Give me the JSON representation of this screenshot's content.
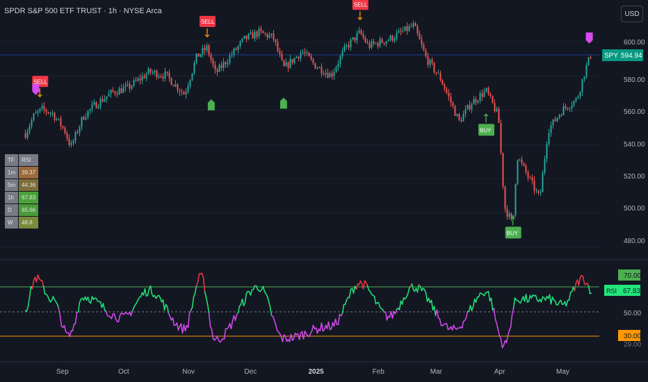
{
  "header": {
    "title": "SPDR S&P 500 ETF TRUST · 1h · NYSE Arca",
    "currency_button": "USD"
  },
  "price_axis": {
    "ticks": [
      "600.00",
      "580.00",
      "560.00",
      "540.00",
      "520.00",
      "500.00",
      "480.00"
    ]
  },
  "rsi_axis": {
    "ticks": [
      "50.00",
      "29.00"
    ],
    "overbought_label": "70.00",
    "oversold_label": "30.00",
    "rsi_tag_name": "RSI",
    "rsi_tag_value": "67.83"
  },
  "last_price": {
    "symbol": "SPY",
    "value": "594.94"
  },
  "time_axis": {
    "labels": [
      "Sep",
      "Oct",
      "Nov",
      "Dec",
      "2025",
      "Feb",
      "Mar",
      "Apr",
      "May"
    ]
  },
  "signals": {
    "sell_label": "SELL",
    "buy_label": "BUY"
  },
  "rsi_table": {
    "header": [
      "TF",
      "RSI"
    ],
    "rows": [
      {
        "tf": "1m",
        "rsi": "39.37",
        "color": "#9c6a3c"
      },
      {
        "tf": "5m",
        "rsi": "44.36",
        "color": "#7d6e3a"
      },
      {
        "tf": "1h",
        "rsi": "67.83",
        "color": "#4aa33a"
      },
      {
        "tf": "D",
        "rsi": "65.66",
        "color": "#4a9a39"
      },
      {
        "tf": "W",
        "rsi": "48.8",
        "color": "#7a8a3b"
      }
    ]
  },
  "colors": {
    "up": "#26a69a",
    "down": "#ef5350",
    "rsi_high": "#22e67a",
    "rsi_low": "#d64bf0",
    "rsi_ob": "#f23645",
    "overbought_line": "#4caf50",
    "oversold_line": "#ff9800",
    "sell": "#f23645",
    "buy": "#4caf50",
    "last_price": "#089981"
  },
  "chart_data": {
    "type": "candlestick",
    "symbol": "SPY",
    "interval": "1h",
    "y_range": [
      470,
      612
    ],
    "x_labels": [
      "Sep",
      "Oct",
      "Nov",
      "Dec",
      "2025",
      "Feb",
      "Mar",
      "Apr",
      "May"
    ],
    "close_path": [
      {
        "x": "Aug 15",
        "y": 548
      },
      {
        "x": "Aug 19",
        "y": 558
      },
      {
        "x": "Aug 23",
        "y": 562
      },
      {
        "x": "Aug 28",
        "y": 560
      },
      {
        "x": "Sep 3",
        "y": 550
      },
      {
        "x": "Sep 6",
        "y": 540
      },
      {
        "x": "Sep 12",
        "y": 558
      },
      {
        "x": "Sep 18",
        "y": 565
      },
      {
        "x": "Sep 26",
        "y": 572
      },
      {
        "x": "Oct 4",
        "y": 575
      },
      {
        "x": "Oct 14",
        "y": 584
      },
      {
        "x": "Oct 22",
        "y": 582
      },
      {
        "x": "Oct 31",
        "y": 571
      },
      {
        "x": "Nov 6",
        "y": 593
      },
      {
        "x": "Nov 11",
        "y": 598
      },
      {
        "x": "Nov 15",
        "y": 583
      },
      {
        "x": "Nov 20",
        "y": 590
      },
      {
        "x": "Nov 29",
        "y": 603
      },
      {
        "x": "Dec 6",
        "y": 607
      },
      {
        "x": "Dec 13",
        "y": 604
      },
      {
        "x": "Dec 18",
        "y": 586
      },
      {
        "x": "Dec 27",
        "y": 596
      },
      {
        "x": "Jan 2",
        "y": 588
      },
      {
        "x": "Jan 10",
        "y": 582
      },
      {
        "x": "Jan 17",
        "y": 598
      },
      {
        "x": "Jan 24",
        "y": 607
      },
      {
        "x": "Jan 28",
        "y": 599
      },
      {
        "x": "Feb 7",
        "y": 603
      },
      {
        "x": "Feb 19",
        "y": 611
      },
      {
        "x": "Feb 25",
        "y": 592
      },
      {
        "x": "Mar 4",
        "y": 580
      },
      {
        "x": "Mar 13",
        "y": 555
      },
      {
        "x": "Mar 19",
        "y": 566
      },
      {
        "x": "Mar 26",
        "y": 573
      },
      {
        "x": "Apr 1",
        "y": 558
      },
      {
        "x": "Apr 4",
        "y": 505
      },
      {
        "x": "Apr 8",
        "y": 495
      },
      {
        "x": "Apr 10",
        "y": 535
      },
      {
        "x": "Apr 21",
        "y": 510
      },
      {
        "x": "Apr 25",
        "y": 550
      },
      {
        "x": "May 2",
        "y": 562
      },
      {
        "x": "May 9",
        "y": 568
      },
      {
        "x": "May 13",
        "y": 585
      },
      {
        "x": "May 16",
        "y": 594.94
      }
    ],
    "last_price": 594.94,
    "signals": [
      {
        "type": "SELL",
        "x": "Aug 22",
        "price": 563
      },
      {
        "type": "SELL",
        "x": "Nov 11",
        "price": 598
      },
      {
        "type": "SELL",
        "x": "Jan 24",
        "price": 608
      },
      {
        "type": "BUY",
        "x": "Mar 26",
        "price": 565
      },
      {
        "type": "BUY",
        "x": "Apr 8",
        "price": 505
      }
    ],
    "rsi": {
      "value": 67.83,
      "overbought": 70,
      "oversold": 30,
      "midline": 50,
      "path": [
        {
          "x": "Aug 15",
          "y": 53
        },
        {
          "x": "Aug 20",
          "y": 77
        },
        {
          "x": "Aug 28",
          "y": 60
        },
        {
          "x": "Sep 5",
          "y": 30
        },
        {
          "x": "Sep 12",
          "y": 62
        },
        {
          "x": "Oct 1",
          "y": 45
        },
        {
          "x": "Oct 14",
          "y": 67
        },
        {
          "x": "Oct 31",
          "y": 36
        },
        {
          "x": "Nov 8",
          "y": 78
        },
        {
          "x": "Nov 15",
          "y": 27
        },
        {
          "x": "Dec 6",
          "y": 70
        },
        {
          "x": "Dec 18",
          "y": 28
        },
        {
          "x": "Jan 10",
          "y": 38
        },
        {
          "x": "Jan 24",
          "y": 73
        },
        {
          "x": "Feb 7",
          "y": 46
        },
        {
          "x": "Feb 19",
          "y": 70
        },
        {
          "x": "Mar 10",
          "y": 35
        },
        {
          "x": "Mar 26",
          "y": 66
        },
        {
          "x": "Apr 4",
          "y": 23
        },
        {
          "x": "Apr 10",
          "y": 60
        },
        {
          "x": "Apr 25",
          "y": 60
        },
        {
          "x": "May 2",
          "y": 55
        },
        {
          "x": "May 12",
          "y": 77
        },
        {
          "x": "May 16",
          "y": 67.83
        }
      ]
    }
  }
}
